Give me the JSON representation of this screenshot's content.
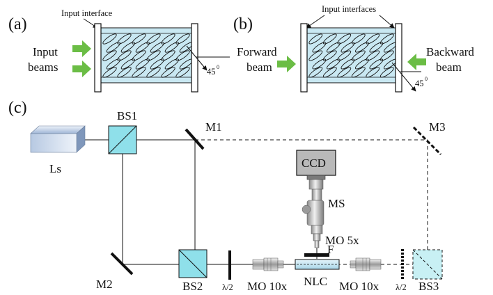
{
  "panels": {
    "a": {
      "letter": "(a)",
      "interface_label": "Input interface",
      "beam_label_line1": "Input",
      "beam_label_line2": "beams",
      "angle_label": "45",
      "angle_unit": "0"
    },
    "b": {
      "letter": "(b)",
      "interface_label": "Input interfaces",
      "forward_line1": "Forward",
      "forward_line2": "beam",
      "backward_line1": "Backward",
      "backward_line2": "beam",
      "angle_label": "45",
      "angle_unit": "0"
    },
    "c": {
      "letter": "(c)",
      "components": {
        "laser": "Ls",
        "bs1": "BS1",
        "bs2": "BS2",
        "bs3": "BS3",
        "m1": "M1",
        "m2": "M2",
        "m3": "M3",
        "ccd": "CCD",
        "ms": "MS",
        "mo5": "MO 5x",
        "filter": "F",
        "nlc": "NLC",
        "mo10_left": "MO 10x",
        "mo10_right": "MO 10x",
        "half_wave_left": "λ/2",
        "half_wave_right": "λ/2"
      }
    }
  },
  "colors": {
    "arrow_green": "#6bbd45",
    "cell_fill": "#c9e8f2",
    "bs_fill": "#8fe0ea",
    "laser_front": "#8fa9cc",
    "lines": "#111111"
  }
}
